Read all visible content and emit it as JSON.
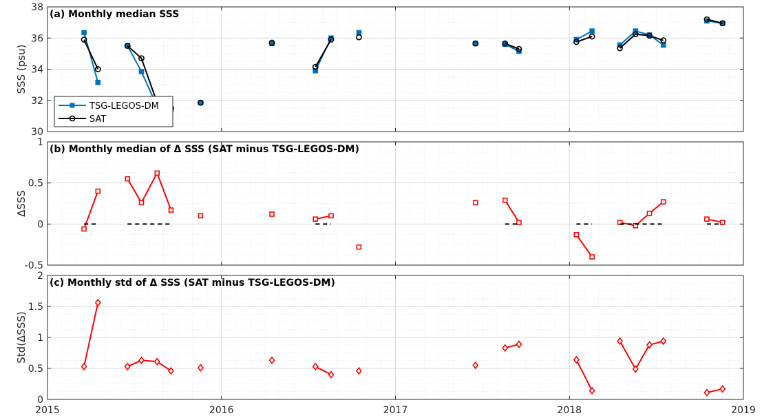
{
  "chart_data": [
    {
      "type": "line",
      "title": "(a) Monthly median SSS",
      "ylabel": "SSS (psu)",
      "xlim": [
        2015.0,
        2019.0
      ],
      "ylim": [
        30,
        38
      ],
      "yticks": [
        "30",
        "32",
        "34",
        "36",
        "38"
      ],
      "grid": true,
      "legend": "upper-left-lower",
      "series": [
        {
          "name": "TSG-LEGOS-DM",
          "color": "#0072BD",
          "marker": "square",
          "segments": [
            [
              [
                2015.21,
                36.35
              ],
              [
                2015.29,
                33.15
              ]
            ],
            [
              [
                2015.46,
                35.5
              ],
              [
                2015.54,
                33.85
              ],
              [
                2015.63,
                31.6
              ],
              [
                2015.71,
                31.4
              ]
            ],
            [
              [
                2015.88,
                31.85
              ]
            ],
            [
              [
                2016.29,
                35.65
              ]
            ],
            [
              [
                2016.54,
                33.9
              ],
              [
                2016.63,
                36.0
              ]
            ],
            [
              [
                2016.79,
                36.35
              ]
            ],
            [
              [
                2017.46,
                35.65
              ]
            ],
            [
              [
                2017.63,
                35.6
              ],
              [
                2017.71,
                35.15
              ]
            ],
            [
              [
                2018.04,
                35.9
              ],
              [
                2018.13,
                36.45
              ]
            ],
            [
              [
                2018.29,
                35.55
              ],
              [
                2018.38,
                36.45
              ],
              [
                2018.46,
                36.2
              ],
              [
                2018.54,
                35.55
              ]
            ],
            [
              [
                2018.79,
                37.1
              ],
              [
                2018.88,
                36.95
              ]
            ]
          ]
        },
        {
          "name": "SAT",
          "color": "#000000",
          "marker": "circle",
          "segments": [
            [
              [
                2015.21,
                35.9
              ],
              [
                2015.29,
                34.0
              ]
            ],
            [
              [
                2015.46,
                35.5
              ],
              [
                2015.54,
                34.7
              ],
              [
                2015.63,
                31.85
              ],
              [
                2015.71,
                31.5
              ]
            ],
            [
              [
                2015.88,
                31.85
              ]
            ],
            [
              [
                2016.29,
                35.7
              ]
            ],
            [
              [
                2016.54,
                34.15
              ],
              [
                2016.63,
                35.9
              ]
            ],
            [
              [
                2016.79,
                36.05
              ]
            ],
            [
              [
                2017.46,
                35.65
              ]
            ],
            [
              [
                2017.63,
                35.65
              ],
              [
                2017.71,
                35.3
              ]
            ],
            [
              [
                2018.04,
                35.75
              ],
              [
                2018.13,
                36.1
              ]
            ],
            [
              [
                2018.29,
                35.35
              ],
              [
                2018.38,
                36.25
              ],
              [
                2018.46,
                36.15
              ],
              [
                2018.54,
                35.85
              ]
            ],
            [
              [
                2018.79,
                37.2
              ],
              [
                2018.88,
                36.95
              ]
            ]
          ]
        }
      ]
    },
    {
      "type": "line",
      "title": "(b) Monthly median of Δ SSS (SAT minus TSG-LEGOS-DM)",
      "ylabel": "ΔSSS",
      "xlim": [
        2015.0,
        2019.0
      ],
      "ylim": [
        -0.5,
        1.0
      ],
      "yticks": [
        "-0.5",
        "0",
        "0.5",
        "1"
      ],
      "grid": true,
      "series": [
        {
          "name": "",
          "color": "#FF0000",
          "marker": "square",
          "segments": [
            [
              [
                2015.21,
                -0.06
              ],
              [
                2015.29,
                0.4
              ]
            ],
            [
              [
                2015.46,
                0.55
              ],
              [
                2015.54,
                0.26
              ],
              [
                2015.63,
                0.62
              ],
              [
                2015.71,
                0.17
              ]
            ],
            [
              [
                2015.88,
                0.1
              ]
            ],
            [
              [
                2016.29,
                0.12
              ]
            ],
            [
              [
                2016.54,
                0.06
              ],
              [
                2016.63,
                0.1
              ]
            ],
            [
              [
                2016.79,
                -0.28
              ]
            ],
            [
              [
                2017.46,
                0.26
              ]
            ],
            [
              [
                2017.63,
                0.29
              ],
              [
                2017.71,
                0.02
              ]
            ],
            [
              [
                2018.04,
                -0.13
              ],
              [
                2018.13,
                -0.4
              ]
            ],
            [
              [
                2018.29,
                0.02
              ],
              [
                2018.38,
                -0.02
              ],
              [
                2018.46,
                0.13
              ],
              [
                2018.54,
                0.27
              ]
            ],
            [
              [
                2018.79,
                0.06
              ],
              [
                2018.88,
                0.02
              ]
            ]
          ]
        },
        {
          "name": "",
          "color": "#000000",
          "style": "dashed",
          "segments": [
            [
              [
                2015.21,
                0
              ],
              [
                2015.29,
                0
              ]
            ],
            [
              [
                2015.46,
                0
              ],
              [
                2015.71,
                0
              ]
            ],
            [
              [
                2016.54,
                0
              ],
              [
                2016.63,
                0
              ]
            ],
            [
              [
                2017.63,
                0
              ],
              [
                2017.71,
                0
              ]
            ],
            [
              [
                2018.04,
                0
              ],
              [
                2018.13,
                0
              ]
            ],
            [
              [
                2018.29,
                0
              ],
              [
                2018.54,
                0
              ]
            ],
            [
              [
                2018.79,
                0
              ],
              [
                2018.88,
                0
              ]
            ]
          ]
        }
      ]
    },
    {
      "type": "line",
      "title": "(c) Monthly std of Δ SSS (SAT minus TSG-LEGOS-DM)",
      "ylabel": "Std(ΔSSS)",
      "xlim": [
        2015.0,
        2019.0
      ],
      "ylim": [
        0,
        2
      ],
      "yticks": [
        "0",
        "0.5",
        "1",
        "1.5",
        "2"
      ],
      "xticks": [
        "2015",
        "2016",
        "2017",
        "2018",
        "2019"
      ],
      "grid": true,
      "series": [
        {
          "name": "",
          "color": "#FF0000",
          "marker": "diamond",
          "segments": [
            [
              [
                2015.21,
                0.53
              ],
              [
                2015.29,
                1.56
              ]
            ],
            [
              [
                2015.46,
                0.53
              ],
              [
                2015.54,
                0.63
              ],
              [
                2015.63,
                0.61
              ],
              [
                2015.71,
                0.46
              ]
            ],
            [
              [
                2015.88,
                0.51
              ]
            ],
            [
              [
                2016.29,
                0.63
              ]
            ],
            [
              [
                2016.54,
                0.53
              ],
              [
                2016.63,
                0.4
              ]
            ],
            [
              [
                2016.79,
                0.46
              ]
            ],
            [
              [
                2017.46,
                0.55
              ]
            ],
            [
              [
                2017.63,
                0.83
              ],
              [
                2017.71,
                0.89
              ]
            ],
            [
              [
                2018.04,
                0.64
              ],
              [
                2018.13,
                0.14
              ]
            ],
            [
              [
                2018.29,
                0.94
              ],
              [
                2018.38,
                0.49
              ],
              [
                2018.46,
                0.88
              ],
              [
                2018.54,
                0.94
              ]
            ],
            [
              [
                2018.79,
                0.11
              ],
              [
                2018.88,
                0.17
              ]
            ]
          ]
        }
      ]
    }
  ]
}
